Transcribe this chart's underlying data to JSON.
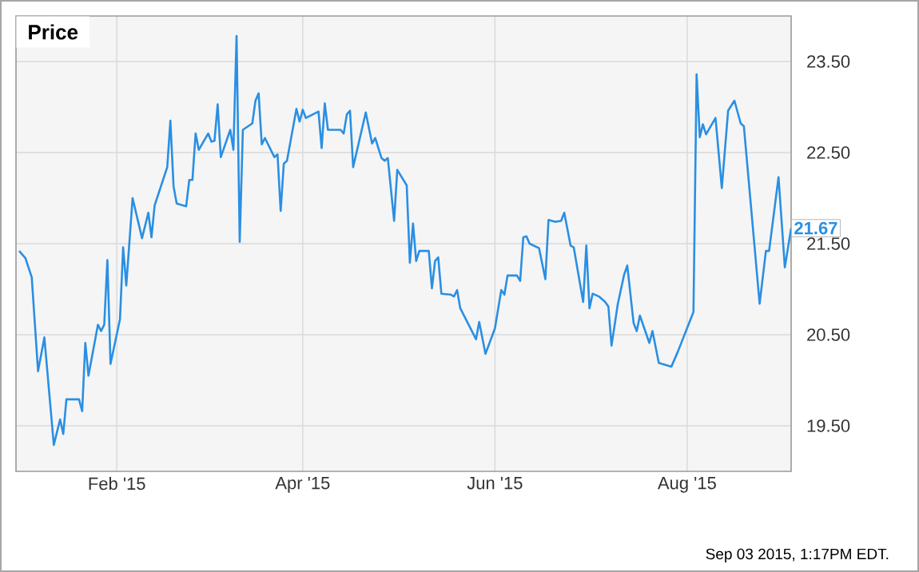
{
  "chart_data": {
    "type": "line",
    "title": "Price",
    "color": "#2a8fe3",
    "grid": true,
    "xlim": [
      "2014-12-31",
      "2015-09-03"
    ],
    "ylim": [
      19,
      24
    ],
    "xticks": [
      {
        "value": "2015-02-01",
        "label": "Feb '15"
      },
      {
        "value": "2015-04-01",
        "label": "Apr '15"
      },
      {
        "value": "2015-06-01",
        "label": "Jun '15"
      },
      {
        "value": "2015-08-01",
        "label": "Aug '15"
      }
    ],
    "yticks": [
      {
        "value": 19.5,
        "label": "19.50"
      },
      {
        "value": 20.5,
        "label": "20.50"
      },
      {
        "value": 21.5,
        "label": "21.50"
      },
      {
        "value": 22.5,
        "label": "22.50"
      },
      {
        "value": 23.5,
        "label": "23.50"
      }
    ],
    "x": [
      "2015-01-01",
      "2015-01-03",
      "2015-01-05",
      "2015-01-07",
      "2015-01-09",
      "2015-01-12",
      "2015-01-14",
      "2015-01-15",
      "2015-01-16",
      "2015-01-20",
      "2015-01-21",
      "2015-01-22",
      "2015-01-23",
      "2015-01-26",
      "2015-01-27",
      "2015-01-28",
      "2015-01-29",
      "2015-01-30",
      "2015-02-02",
      "2015-02-03",
      "2015-02-04",
      "2015-02-06",
      "2015-02-09",
      "2015-02-11",
      "2015-02-12",
      "2015-02-13",
      "2015-02-17",
      "2015-02-18",
      "2015-02-19",
      "2015-02-20",
      "2015-02-23",
      "2015-02-24",
      "2015-02-25",
      "2015-02-26",
      "2015-02-27",
      "2015-03-02",
      "2015-03-03",
      "2015-03-04",
      "2015-03-05",
      "2015-03-06",
      "2015-03-09",
      "2015-03-10",
      "2015-03-11",
      "2015-03-12",
      "2015-03-13",
      "2015-03-16",
      "2015-03-17",
      "2015-03-18",
      "2015-03-19",
      "2015-03-20",
      "2015-03-23",
      "2015-03-24",
      "2015-03-25",
      "2015-03-26",
      "2015-03-27",
      "2015-03-30",
      "2015-03-31",
      "2015-04-01",
      "2015-04-02",
      "2015-04-06",
      "2015-04-07",
      "2015-04-08",
      "2015-04-09",
      "2015-04-13",
      "2015-04-14",
      "2015-04-15",
      "2015-04-16",
      "2015-04-17",
      "2015-04-21",
      "2015-04-23",
      "2015-04-24",
      "2015-04-26",
      "2015-04-27",
      "2015-04-28",
      "2015-04-30",
      "2015-05-01",
      "2015-05-04",
      "2015-05-05",
      "2015-05-06",
      "2015-05-07",
      "2015-05-08",
      "2015-05-11",
      "2015-05-12",
      "2015-05-13",
      "2015-05-14",
      "2015-05-15",
      "2015-05-18",
      "2015-05-19",
      "2015-05-20",
      "2015-05-21",
      "2015-05-26",
      "2015-05-27",
      "2015-05-29",
      "2015-06-01",
      "2015-06-03",
      "2015-06-04",
      "2015-06-05",
      "2015-06-08",
      "2015-06-09",
      "2015-06-10",
      "2015-06-11",
      "2015-06-12",
      "2015-06-15",
      "2015-06-17",
      "2015-06-18",
      "2015-06-20",
      "2015-06-22",
      "2015-06-23",
      "2015-06-25",
      "2015-06-26",
      "2015-06-29",
      "2015-06-30",
      "2015-07-01",
      "2015-07-02",
      "2015-07-04",
      "2015-07-06",
      "2015-07-07",
      "2015-07-08",
      "2015-07-10",
      "2015-07-12",
      "2015-07-13",
      "2015-07-15",
      "2015-07-16",
      "2015-07-17",
      "2015-07-20",
      "2015-07-21",
      "2015-07-23",
      "2015-07-27",
      "2015-07-29",
      "2015-08-03",
      "2015-08-04",
      "2015-08-05",
      "2015-08-06",
      "2015-08-07",
      "2015-08-10",
      "2015-08-12",
      "2015-08-14",
      "2015-08-16",
      "2015-08-18",
      "2015-08-19",
      "2015-08-24",
      "2015-08-26",
      "2015-08-27",
      "2015-08-30",
      "2015-09-01",
      "2015-09-03"
    ],
    "values": [
      21.42,
      21.34,
      21.13,
      20.1,
      20.47,
      19.29,
      19.57,
      19.41,
      19.79,
      19.79,
      19.66,
      20.41,
      20.05,
      20.61,
      20.54,
      20.61,
      21.32,
      20.18,
      20.67,
      21.46,
      21.04,
      22.0,
      21.56,
      21.84,
      21.57,
      21.92,
      22.34,
      22.85,
      22.13,
      21.94,
      21.91,
      22.2,
      22.2,
      22.71,
      22.53,
      22.71,
      22.62,
      22.63,
      23.03,
      22.45,
      22.75,
      22.53,
      23.78,
      21.52,
      22.75,
      22.82,
      23.07,
      23.15,
      22.59,
      22.66,
      22.45,
      22.48,
      21.86,
      22.38,
      22.41,
      22.98,
      22.84,
      22.97,
      22.88,
      22.95,
      22.55,
      23.04,
      22.75,
      22.75,
      22.71,
      22.92,
      22.96,
      22.34,
      22.94,
      22.6,
      22.66,
      22.44,
      22.41,
      22.44,
      21.75,
      22.31,
      22.14,
      21.29,
      21.72,
      21.31,
      21.42,
      21.42,
      21.01,
      21.31,
      21.35,
      20.95,
      20.94,
      20.92,
      20.99,
      20.79,
      20.45,
      20.64,
      20.29,
      20.57,
      20.99,
      20.94,
      21.15,
      21.15,
      21.09,
      21.57,
      21.58,
      21.5,
      21.45,
      21.11,
      21.76,
      21.74,
      21.75,
      21.84,
      21.48,
      21.46,
      20.86,
      21.48,
      20.79,
      20.95,
      20.92,
      20.86,
      20.81,
      20.38,
      20.84,
      21.16,
      21.26,
      20.63,
      20.54,
      20.71,
      20.41,
      20.54,
      20.19,
      20.15,
      20.31,
      20.75,
      23.36,
      22.67,
      22.81,
      22.7,
      22.88,
      22.11,
      22.96,
      23.07,
      22.82,
      22.79,
      20.84,
      21.42,
      21.42,
      22.23,
      21.24,
      21.67
    ],
    "annotations": [
      "Sep 03 2015, 1:17PM EDT.",
      {
        "text": "21.67",
        "x": "2015-09-03",
        "y": 21.67
      }
    ]
  }
}
